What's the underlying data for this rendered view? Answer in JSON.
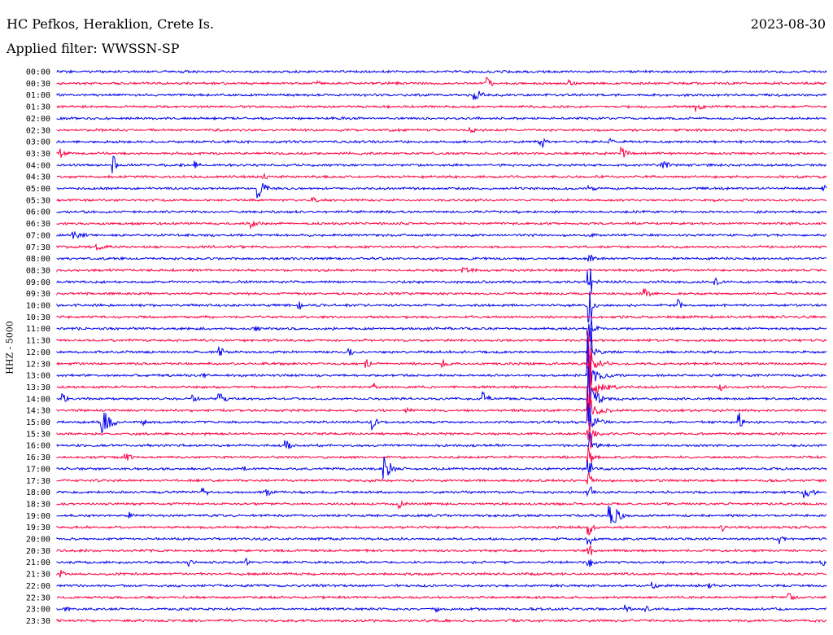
{
  "header": {
    "station": "HC Pefkos, Heraklion, Crete Is.",
    "date": "2023-08-30",
    "filter": "Applied filter: WWSSN-SP",
    "channel": "HHZ - 5000"
  },
  "colors": {
    "odd_trace": "#0000ee",
    "even_trace": "#ff0040"
  },
  "rows": [
    "00:00",
    "00:30",
    "01:00",
    "01:30",
    "02:00",
    "02:30",
    "03:00",
    "03:30",
    "04:00",
    "04:30",
    "05:00",
    "05:30",
    "06:00",
    "06:30",
    "07:00",
    "07:30",
    "08:00",
    "08:30",
    "09:00",
    "09:30",
    "10:00",
    "10:30",
    "11:00",
    "11:30",
    "12:00",
    "12:30",
    "13:00",
    "13:30",
    "14:00",
    "14:30",
    "15:00",
    "15:30",
    "16:00",
    "16:30",
    "17:00",
    "17:30",
    "18:00",
    "18:30",
    "19:00",
    "19:30",
    "20:00",
    "20:30",
    "21:00",
    "21:30",
    "22:00",
    "22:30",
    "23:00",
    "23:30"
  ]
}
